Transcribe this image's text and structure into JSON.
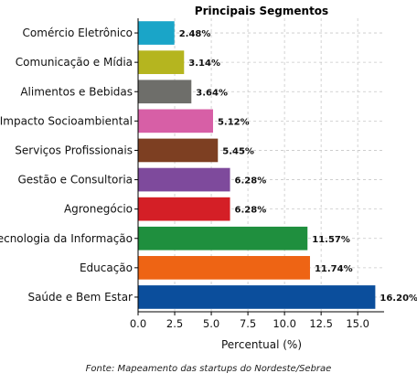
{
  "chart_data": {
    "type": "bar",
    "orientation": "horizontal",
    "title": "Principais Segmentos",
    "xlabel": "Percentual (%)",
    "ylabel": "",
    "xlim": [
      0,
      16.8
    ],
    "xticks": [
      "0.0",
      "2.5",
      "5.0",
      "7.5",
      "10.0",
      "12.5",
      "15.0"
    ],
    "grid": true,
    "categories": [
      "Comércio Eletrônico",
      "Comunicação e Mídia",
      "Alimentos e Bebidas",
      "Impacto Socioambiental",
      "Serviços Profissionais",
      "Gestão e Consultoria",
      "Agronegócio",
      "Tecnologia da Informação",
      "Educação",
      "Saúde e Bem Estar"
    ],
    "values": [
      2.48,
      3.14,
      3.64,
      5.12,
      5.45,
      6.28,
      6.28,
      11.57,
      11.74,
      16.2
    ],
    "value_labels": [
      "2.48%",
      "3.14%",
      "3.64%",
      "5.12%",
      "5.45%",
      "6.28%",
      "6.28%",
      "11.57%",
      "11.74%",
      "16.20%"
    ],
    "colors": [
      "#1aa5c8",
      "#b5b51f",
      "#6e6e6a",
      "#d75fa6",
      "#7d3f22",
      "#7e4a9c",
      "#d41f26",
      "#1f8f3e",
      "#ee6414",
      "#0b4e9c"
    ]
  },
  "source": "Fonte: Mapeamento das startups do Nordeste/Sebrae"
}
